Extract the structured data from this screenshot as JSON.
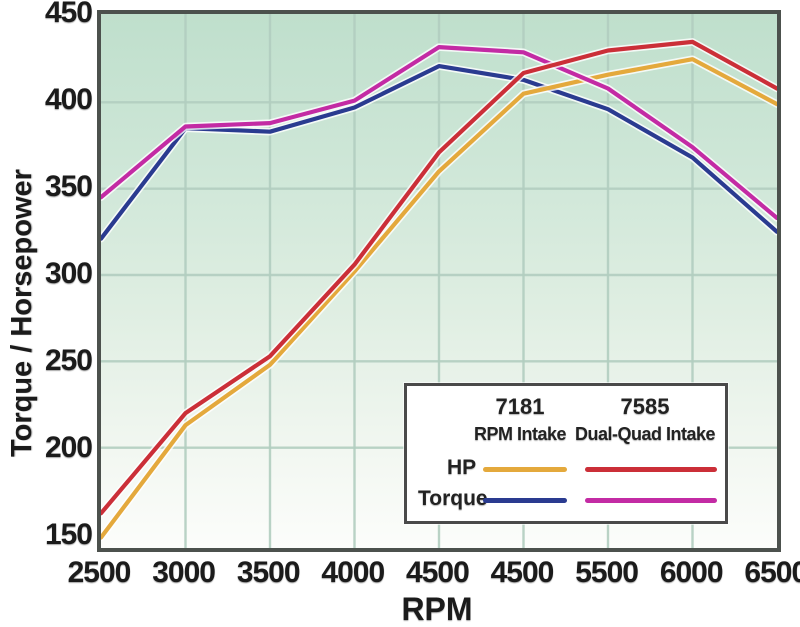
{
  "chart_data": {
    "type": "line",
    "title": "",
    "xlabel": "RPM",
    "ylabel": "Torque / Horsepower",
    "x_tick_labels": [
      "2500",
      "3000",
      "3500",
      "4000",
      "4500",
      "4500",
      "5500",
      "6000",
      "6500"
    ],
    "y_ticks": [
      450,
      400,
      350,
      300,
      250,
      200,
      150
    ],
    "ylim": [
      150,
      450
    ],
    "grid": true,
    "legend_position": "inside-bottom-right",
    "plot_background_top": "#bfdfcc",
    "plot_background_bottom": "#fcfdfb",
    "gridline_color": "#b2cec0",
    "series": [
      {
        "id": "torque-7181",
        "name": "Torque 7181 RPM Intake",
        "color": "#2a3b90",
        "values": [
          321,
          385,
          383,
          397,
          421,
          413,
          396,
          368,
          325
        ]
      },
      {
        "id": "hp-7181",
        "name": "HP 7181 RPM Intake",
        "color": "#e4a93c",
        "values": [
          148,
          213,
          248,
          302,
          360,
          405,
          416,
          425,
          399
        ]
      },
      {
        "id": "torque-7585",
        "name": "Torque 7585 Dual-Quad Intake",
        "color": "#c32ba4",
        "values": [
          345,
          386,
          388,
          401,
          432,
          429,
          408,
          374,
          333
        ]
      },
      {
        "id": "hp-7585",
        "name": "HP 7585 Dual-Quad Intake",
        "color": "#cb2f38",
        "values": [
          162,
          220,
          253,
          306,
          371,
          417,
          430,
          435,
          408
        ]
      }
    ],
    "legend": {
      "columns": [
        {
          "model": "7181",
          "label": "RPM Intake"
        },
        {
          "model": "7585",
          "label": "Dual-Quad Intake"
        }
      ],
      "rows": [
        {
          "label": "HP",
          "swatches": [
            "#e4a93c",
            "#cb2f38"
          ]
        },
        {
          "label": "Torque",
          "swatches": [
            "#2a3b90",
            "#c32ba4"
          ]
        }
      ]
    }
  }
}
